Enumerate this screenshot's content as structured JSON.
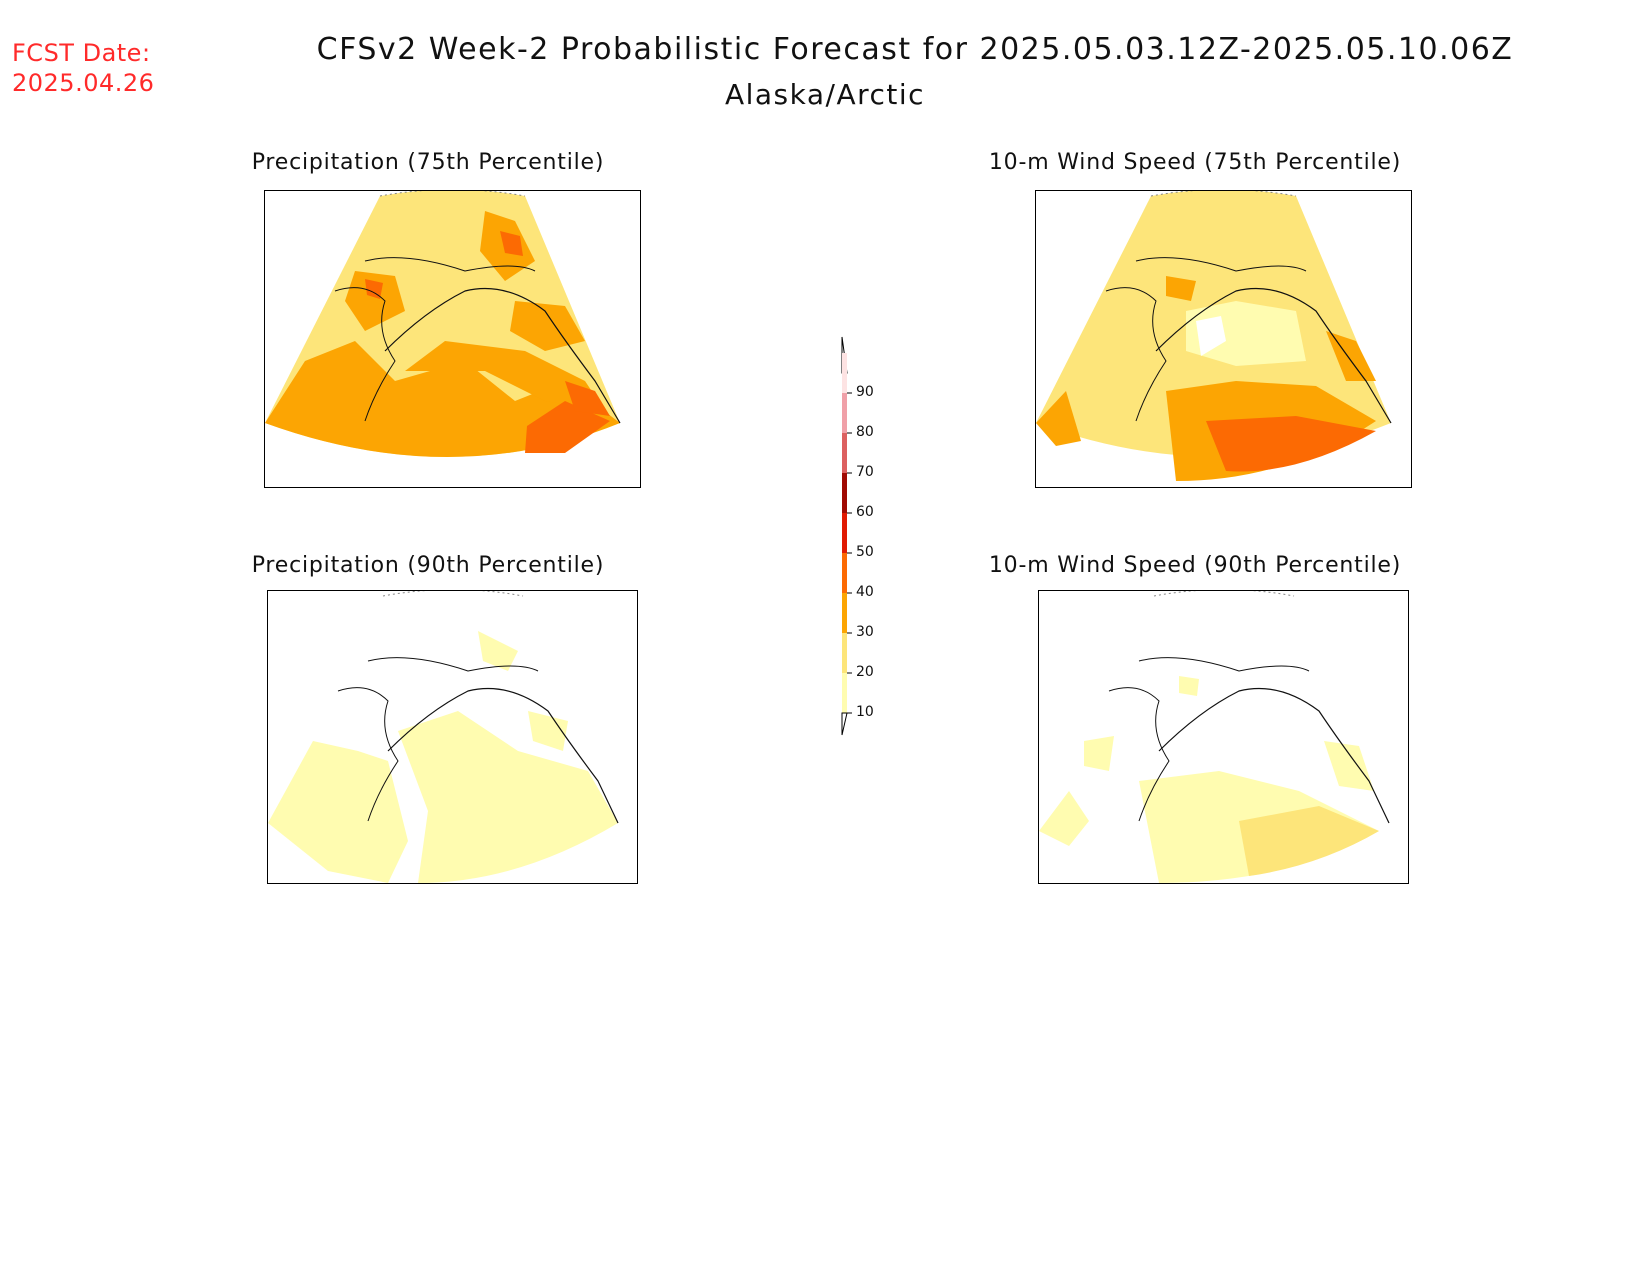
{
  "header": {
    "fcst_label": "FCST Date:",
    "fcst_date": "2025.04.26",
    "title": "CFSv2 Week-2 Probabilistic Forecast for 2025.05.03.12Z-2025.05.10.06Z",
    "region": "Alaska/Arctic"
  },
  "panels": [
    {
      "id": "precip75",
      "title": "Precipitation (75th Percentile)",
      "dominant_band": 30
    },
    {
      "id": "wind75",
      "title": "10-m Wind Speed (75th Percentile)",
      "dominant_band": 20
    },
    {
      "id": "precip90",
      "title": "Precipitation (90th Percentile)",
      "dominant_band": 10
    },
    {
      "id": "wind90",
      "title": "10-m Wind Speed (90th Percentile)",
      "dominant_band": 10
    }
  ],
  "colorbar": {
    "ticks": [
      "10",
      "20",
      "30",
      "40",
      "50",
      "60",
      "70",
      "80",
      "90"
    ],
    "colors": [
      "#fffcb0",
      "#fde57a",
      "#fca503",
      "#fc6a03",
      "#e01a03",
      "#a00a03",
      "#dc6060",
      "#f0a0a8",
      "#fde3e3"
    ]
  }
}
